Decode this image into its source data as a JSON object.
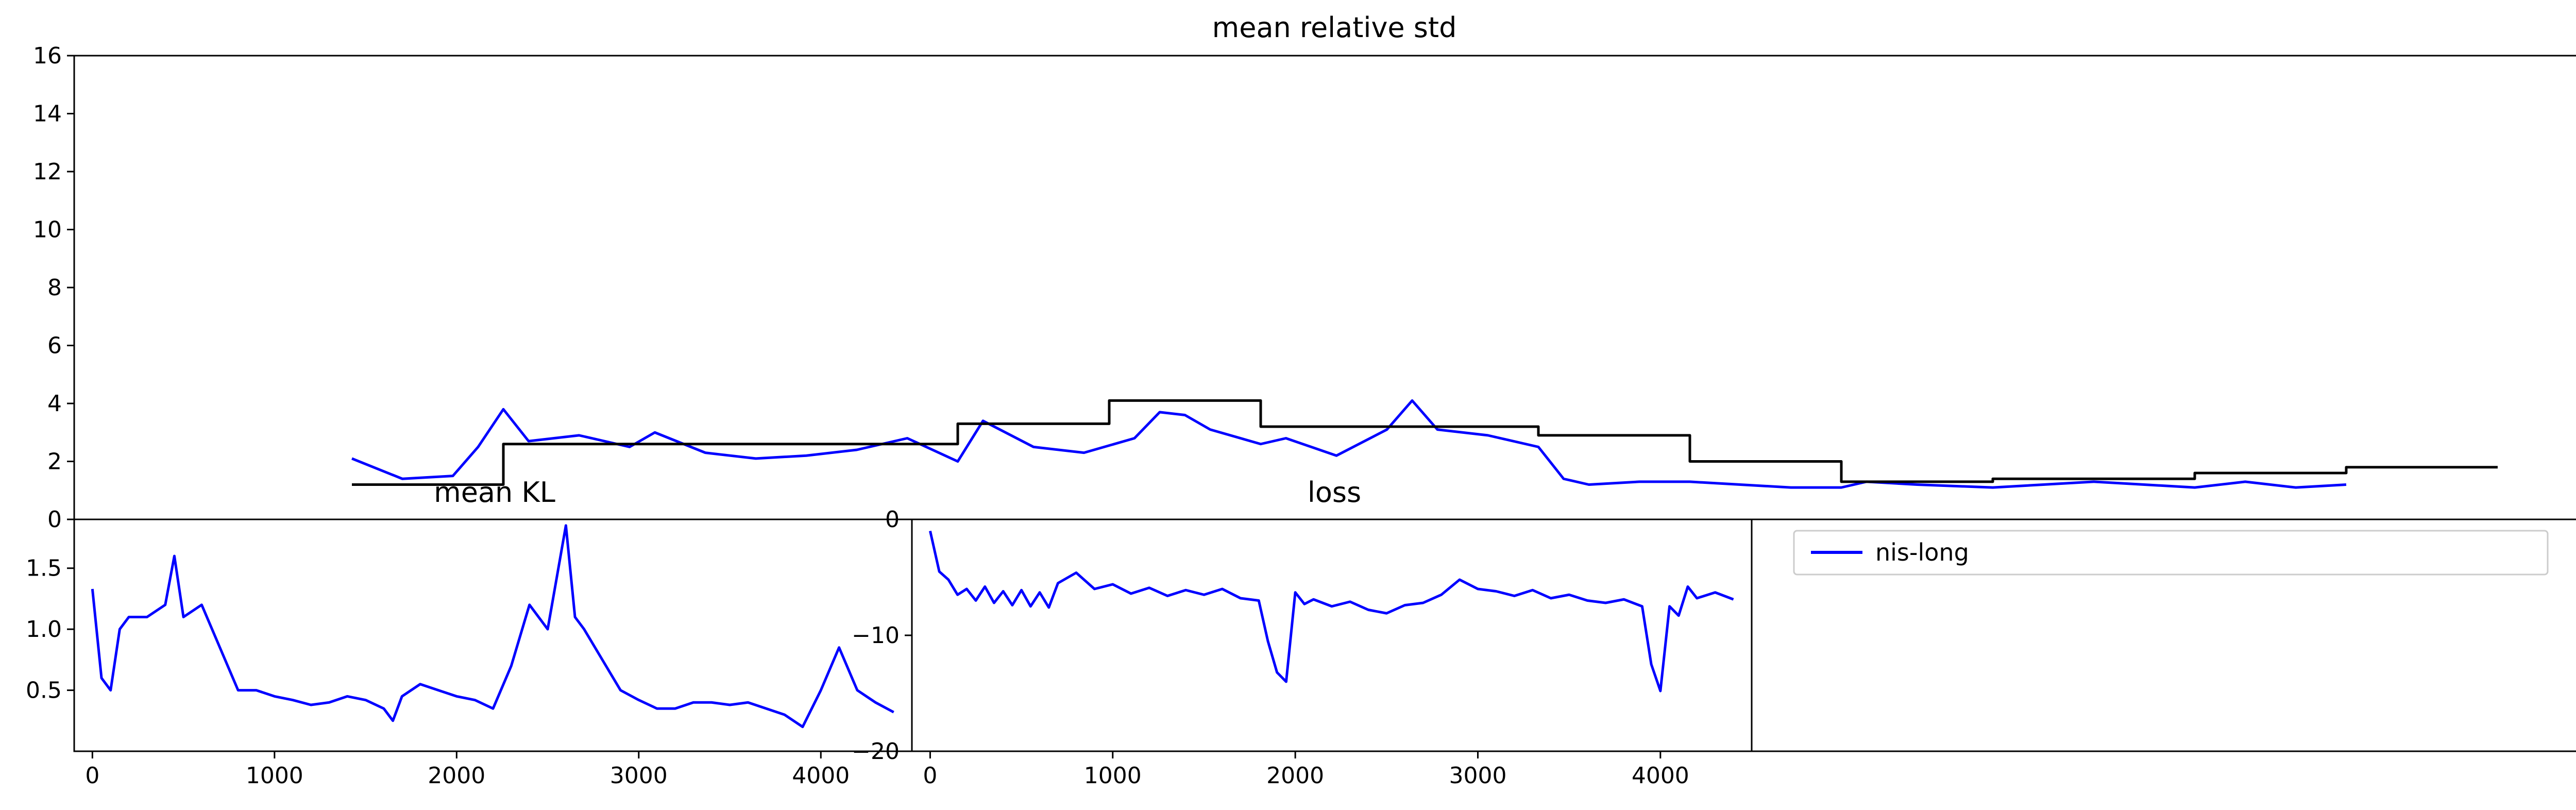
{
  "chart_data": [
    {
      "type": "line",
      "title": "mean relative std",
      "ylim": [
        0,
        16
      ],
      "yticks": [
        "0",
        "2",
        "4",
        "6",
        "8",
        "10",
        "12",
        "14",
        "16"
      ],
      "series": [
        {
          "color": "#0000ff",
          "x": [
            450,
            550,
            650,
            700,
            750,
            800,
            900,
            1000,
            1050,
            1150,
            1250,
            1350,
            1450,
            1550,
            1650,
            1700,
            1800,
            1900,
            2000,
            2050,
            2100,
            2150,
            2250,
            2300,
            2400,
            2500,
            2550,
            2600,
            2700,
            2800,
            2850,
            2900,
            3000,
            3100,
            3200,
            3300,
            3400,
            3450,
            3550,
            3700,
            3800,
            3900,
            4000,
            4100,
            4200,
            4300,
            4400
          ],
          "y": [
            2.1,
            1.4,
            1.5,
            2.5,
            3.8,
            2.7,
            2.9,
            2.5,
            3.0,
            2.3,
            2.1,
            2.2,
            2.4,
            2.8,
            2.0,
            3.4,
            2.5,
            2.3,
            2.8,
            3.7,
            3.6,
            3.1,
            2.6,
            2.8,
            2.2,
            3.1,
            4.1,
            3.1,
            2.9,
            2.5,
            1.4,
            1.2,
            1.3,
            1.3,
            1.2,
            1.1,
            1.1,
            1.3,
            1.2,
            1.1,
            1.2,
            1.3,
            1.2,
            1.1,
            1.3,
            1.1,
            1.2
          ]
        },
        {
          "color": "#000000",
          "step": true,
          "x": [
            450,
            750,
            1650,
            1950,
            2250,
            2800,
            3100,
            3400,
            3700,
            4100,
            4400
          ],
          "y": [
            1.2,
            2.6,
            3.3,
            4.1,
            3.2,
            2.9,
            2.0,
            1.3,
            1.4,
            1.6,
            1.8
          ]
        }
      ]
    },
    {
      "type": "line",
      "title": "mean KL",
      "ylim": [
        0,
        1.9
      ],
      "yticks": [
        "0.5",
        "1.0",
        "1.5"
      ],
      "xlim": [
        -100,
        4500
      ],
      "xticks": [
        "0",
        "1000",
        "2000",
        "3000",
        "4000"
      ],
      "series": [
        {
          "color": "#0000ff",
          "x": [
            0,
            50,
            100,
            150,
            200,
            300,
            400,
            450,
            500,
            600,
            700,
            800,
            900,
            1000,
            1100,
            1200,
            1300,
            1400,
            1500,
            1600,
            1650,
            1700,
            1800,
            1900,
            2000,
            2100,
            2200,
            2300,
            2400,
            2500,
            2600,
            2650,
            2700,
            2800,
            2900,
            3000,
            3100,
            3200,
            3300,
            3400,
            3500,
            3600,
            3700,
            3800,
            3900,
            4000,
            4100,
            4200,
            4300,
            4400
          ],
          "y": [
            1.33,
            0.6,
            0.5,
            1.0,
            1.1,
            1.1,
            1.2,
            1.6,
            1.1,
            1.2,
            0.85,
            0.5,
            0.5,
            0.45,
            0.42,
            0.38,
            0.4,
            0.45,
            0.42,
            0.35,
            0.25,
            0.45,
            0.55,
            0.5,
            0.45,
            0.42,
            0.35,
            0.7,
            1.2,
            1.0,
            1.85,
            1.1,
            1.0,
            0.75,
            0.5,
            0.42,
            0.35,
            0.35,
            0.4,
            0.4,
            0.38,
            0.4,
            0.35,
            0.3,
            0.2,
            0.5,
            0.85,
            0.5,
            0.4,
            0.32
          ]
        }
      ]
    },
    {
      "type": "line",
      "title": "loss",
      "ylim": [
        -20,
        0
      ],
      "yticks": [
        "−20",
        "−10",
        "0"
      ],
      "xlim": [
        -100,
        4500
      ],
      "xticks": [
        "0",
        "1000",
        "2000",
        "3000",
        "4000"
      ],
      "legend": {
        "position": "top",
        "entries": [
          "nis-long"
        ]
      },
      "series": [
        {
          "name": "nis-long",
          "color": "#0000ff",
          "x": [
            0,
            50,
            100,
            150,
            200,
            250,
            300,
            350,
            400,
            450,
            500,
            550,
            600,
            650,
            700,
            800,
            900,
            1000,
            1100,
            1200,
            1300,
            1400,
            1500,
            1600,
            1700,
            1800,
            1850,
            1900,
            1950,
            2000,
            2050,
            2100,
            2200,
            2300,
            2400,
            2500,
            2600,
            2700,
            2800,
            2900,
            3000,
            3100,
            3200,
            3300,
            3400,
            3500,
            3600,
            3700,
            3800,
            3900,
            3950,
            4000,
            4050,
            4100,
            4150,
            4200,
            4300,
            4400
          ],
          "y": [
            -1.0,
            -4.5,
            -5.2,
            -6.5,
            -6.0,
            -7.0,
            -5.8,
            -7.2,
            -6.2,
            -7.4,
            -6.1,
            -7.5,
            -6.3,
            -7.6,
            -5.5,
            -4.6,
            -6.0,
            -5.6,
            -6.4,
            -5.9,
            -6.6,
            -6.1,
            -6.5,
            -6.0,
            -6.8,
            -7.0,
            -10.5,
            -13.2,
            -14.0,
            -6.3,
            -7.3,
            -6.9,
            -7.5,
            -7.1,
            -7.8,
            -8.1,
            -7.4,
            -7.2,
            -6.5,
            -5.2,
            -6.0,
            -6.2,
            -6.6,
            -6.1,
            -6.8,
            -6.5,
            -7.0,
            -7.2,
            -6.9,
            -7.5,
            -12.5,
            -14.8,
            -7.5,
            -8.3,
            -5.8,
            -6.8,
            -6.3,
            -6.9
          ]
        }
      ]
    }
  ]
}
